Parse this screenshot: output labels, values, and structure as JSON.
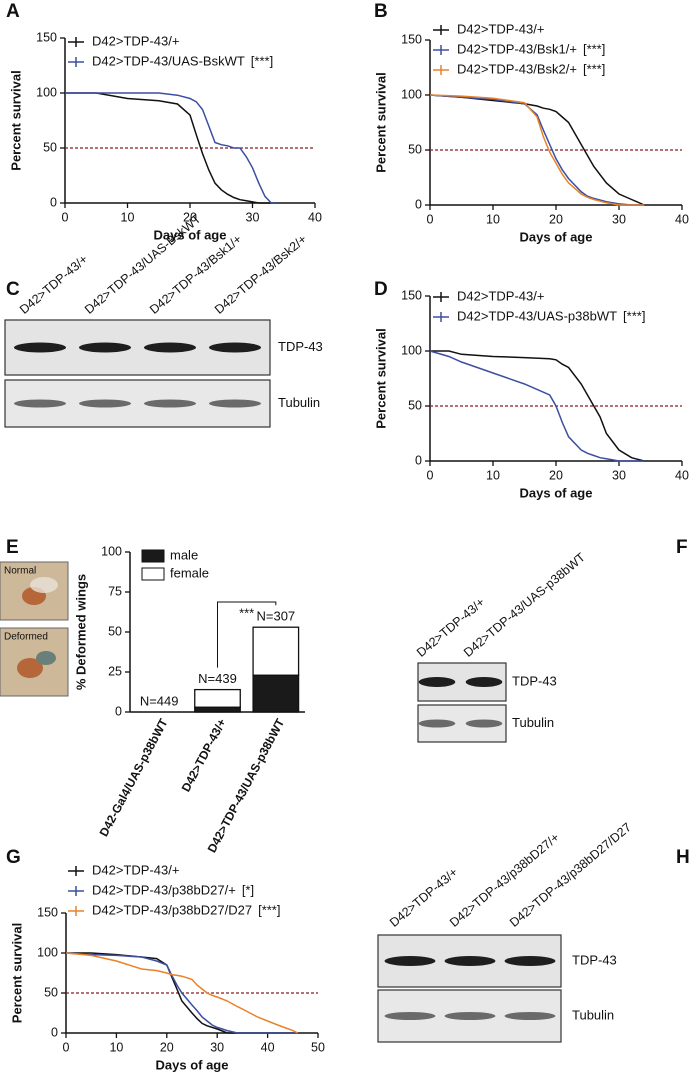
{
  "panels": [
    "A",
    "B",
    "C",
    "D",
    "E",
    "F",
    "G",
    "H"
  ],
  "chart_data": [
    {
      "type": "line",
      "xlabel": "Days of age",
      "ylabel": "Percent survival",
      "xlim": [
        0,
        40
      ],
      "ylim": [
        0,
        150
      ],
      "xticks": [
        0,
        10,
        20,
        30,
        40
      ],
      "yticks": [
        0,
        50,
        100,
        150
      ],
      "reference_line": 50,
      "reference_color": "#8b1a1a",
      "x": [
        0,
        5,
        10,
        15,
        18,
        20,
        21,
        22,
        23,
        24,
        25,
        26,
        27,
        28,
        29,
        30,
        31,
        32,
        33,
        34
      ],
      "series": [
        {
          "name": "D42>TDP-43/+",
          "color": "#111111",
          "values": [
            100,
            100,
            95,
            93,
            90,
            80,
            62,
            45,
            30,
            18,
            12,
            8,
            5,
            3,
            2,
            1,
            0,
            0,
            0,
            0
          ]
        },
        {
          "name": "D42>TDP-43/UAS-BskWT",
          "annotation": "[***]",
          "color": "#3c4fa0",
          "values": [
            100,
            100,
            100,
            100,
            98,
            95,
            92,
            85,
            70,
            55,
            53,
            52,
            50,
            50,
            42,
            32,
            18,
            6,
            0,
            0
          ]
        }
      ]
    },
    {
      "type": "line",
      "xlabel": "Days of age",
      "ylabel": "Percent survival",
      "xlim": [
        0,
        40
      ],
      "ylim": [
        0,
        150
      ],
      "xticks": [
        0,
        10,
        20,
        30,
        40
      ],
      "yticks": [
        0,
        50,
        100,
        150
      ],
      "reference_line": 50,
      "reference_color": "#8b1a1a",
      "x": [
        0,
        5,
        10,
        15,
        17,
        18,
        19,
        20,
        21,
        22,
        24,
        25,
        26,
        28,
        30,
        32,
        34
      ],
      "series": [
        {
          "name": "D42>TDP-43/+",
          "color": "#111111",
          "values": [
            100,
            98,
            95,
            92,
            90,
            88,
            87,
            85,
            80,
            75,
            55,
            45,
            35,
            20,
            10,
            5,
            0
          ]
        },
        {
          "name": "D42>TDP-43/Bsk1/+",
          "annotation": "[***]",
          "color": "#3c4fa0",
          "values": [
            100,
            98,
            96,
            92,
            82,
            68,
            55,
            42,
            32,
            24,
            12,
            8,
            6,
            3,
            1,
            0,
            0
          ]
        },
        {
          "name": "D42>TDP-43/Bsk2/+",
          "annotation": "[***]",
          "color": "#e8822a",
          "values": [
            100,
            99,
            97,
            93,
            80,
            62,
            48,
            38,
            28,
            20,
            10,
            7,
            5,
            2,
            0,
            0,
            0
          ]
        }
      ]
    },
    {
      "type": "line",
      "xlabel": "Days of age",
      "ylabel": "Percent survival",
      "xlim": [
        0,
        40
      ],
      "ylim": [
        0,
        150
      ],
      "xticks": [
        0,
        10,
        20,
        30,
        40
      ],
      "yticks": [
        0,
        50,
        100,
        150
      ],
      "reference_line": 50,
      "reference_color": "#8b1a1a",
      "x": [
        0,
        3,
        5,
        10,
        15,
        19,
        20,
        21,
        22,
        24,
        25,
        26,
        27,
        28,
        30,
        32,
        34
      ],
      "series": [
        {
          "name": "D42>TDP-43/+",
          "color": "#111111",
          "values": [
            100,
            100,
            97,
            95,
            94,
            93,
            92,
            88,
            85,
            70,
            60,
            50,
            40,
            25,
            10,
            3,
            0
          ]
        },
        {
          "name": "D42>TDP-43/UAS-p38bWT",
          "annotation": "[***]",
          "color": "#3c4fa0",
          "values": [
            100,
            95,
            90,
            80,
            70,
            60,
            50,
            35,
            22,
            10,
            7,
            5,
            3,
            2,
            0,
            0,
            0
          ]
        }
      ]
    },
    {
      "type": "bar",
      "stacked": true,
      "ylabel": "% Deformed wings",
      "ylim": [
        0,
        100
      ],
      "yticks": [
        0,
        25,
        50,
        75,
        100
      ],
      "categories": [
        "D42-Gal4/UAS-p38bWT",
        "D42>TDP-43/+",
        "D42>TDP-43/UAS-p38bWT"
      ],
      "series": [
        {
          "name": "male",
          "color": "#1a1a1a",
          "values": [
            0,
            3,
            23
          ]
        },
        {
          "name": "female",
          "color": "#ffffff",
          "values": [
            0,
            11,
            30
          ]
        }
      ],
      "annotations": [
        "N=449",
        "N=439",
        "N=307"
      ],
      "significance": "***"
    },
    {
      "type": "line",
      "xlabel": "Days of age",
      "ylabel": "Percent survival",
      "xlim": [
        0,
        50
      ],
      "ylim": [
        0,
        150
      ],
      "xticks": [
        0,
        10,
        20,
        30,
        40,
        50
      ],
      "yticks": [
        0,
        50,
        100,
        150
      ],
      "reference_line": 50,
      "reference_color": "#8b1a1a",
      "x": [
        0,
        5,
        10,
        15,
        18,
        20,
        21,
        22,
        23,
        25,
        26,
        27,
        28,
        29,
        30,
        32,
        34,
        35,
        38,
        42,
        45,
        46
      ],
      "series": [
        {
          "name": "D42>TDP-43/+",
          "color": "#111111",
          "values": [
            100,
            100,
            98,
            95,
            93,
            85,
            70,
            55,
            40,
            25,
            18,
            12,
            9,
            7,
            5,
            0,
            0,
            0,
            0,
            0,
            0,
            0
          ]
        },
        {
          "name": "D42>TDP-43/p38bD27/+",
          "annotation": "[*]",
          "color": "#3c4fa0",
          "values": [
            100,
            98,
            97,
            95,
            90,
            85,
            72,
            60,
            50,
            35,
            28,
            20,
            15,
            10,
            7,
            3,
            0,
            0,
            0,
            0,
            0,
            0
          ]
        },
        {
          "name": "D42>TDP-43/p38bD27/D27",
          "annotation": "[***]",
          "color": "#e8822a",
          "values": [
            100,
            97,
            90,
            80,
            78,
            75,
            73,
            72,
            71,
            67,
            60,
            55,
            50,
            47,
            45,
            40,
            33,
            30,
            20,
            10,
            3,
            0
          ]
        }
      ]
    }
  ],
  "blots": [
    {
      "lanes": [
        "D42>TDP-43/+",
        "D42>TDP-43/UAS-BskWT",
        "D42>TDP-43/Bsk1/+",
        "D42>TDP-43/Bsk2/+"
      ],
      "rows": [
        "TDP-43",
        "Tubulin"
      ]
    },
    {
      "lanes": [
        "D42>TDP-43/+",
        "D42>TDP-43/UAS-p38bWT"
      ],
      "rows": [
        "TDP-43",
        "Tubulin"
      ]
    },
    {
      "lanes": [
        "D42>TDP-43/+",
        "D42>TDP-43/p38bD27/+",
        "D42>TDP-43/p38bD27/D27"
      ],
      "rows": [
        "TDP-43",
        "Tubulin"
      ]
    }
  ],
  "images": [
    "Normal",
    "Deformed"
  ]
}
